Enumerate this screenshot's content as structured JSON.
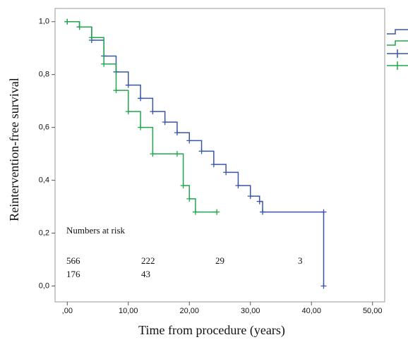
{
  "chart_data": {
    "type": "line",
    "step": "post",
    "x_label": "Time from procedure (years)",
    "y_label": "Reintervention-free survival",
    "xlim": [
      -2,
      52
    ],
    "ylim": [
      -0.06,
      1.05
    ],
    "xticks": [
      {
        "value": 0,
        "label": ",00"
      },
      {
        "value": 10,
        "label": "10,00"
      },
      {
        "value": 20,
        "label": "20,00"
      },
      {
        "value": 30,
        "label": "30,00"
      },
      {
        "value": 40,
        "label": "40,00"
      },
      {
        "value": 50,
        "label": "50,00"
      }
    ],
    "yticks": [
      {
        "value": 0,
        "label": "0,0"
      },
      {
        "value": 0.2,
        "label": "0,2"
      },
      {
        "value": 0.4,
        "label": "0,4"
      },
      {
        "value": 0.6,
        "label": "0,6"
      },
      {
        "value": 0.8,
        "label": "0,8"
      },
      {
        "value": 1.0,
        "label": "1,0"
      }
    ],
    "series": [
      {
        "color": "#3a55a8",
        "x": [
          0,
          2,
          4,
          6,
          8,
          10,
          12,
          14,
          16,
          18,
          20,
          22,
          24,
          26,
          28,
          30,
          31.5,
          32,
          42,
          42
        ],
        "values": [
          1.0,
          0.98,
          0.93,
          0.87,
          0.81,
          0.76,
          0.71,
          0.66,
          0.62,
          0.58,
          0.55,
          0.51,
          0.46,
          0.43,
          0.38,
          0.34,
          0.32,
          0.28,
          0.28,
          0.0
        ]
      },
      {
        "color": "#1fa84a",
        "x": [
          0,
          2,
          4,
          6,
          8,
          10,
          12,
          14,
          18,
          19,
          20,
          21,
          24.5
        ],
        "values": [
          1.0,
          0.98,
          0.94,
          0.84,
          0.74,
          0.66,
          0.6,
          0.5,
          0.5,
          0.38,
          0.33,
          0.28,
          0.28
        ]
      }
    ],
    "risk_table": {
      "title": "Numbers at risk",
      "rows": [
        [
          566,
          222,
          29,
          3
        ],
        [
          176,
          43
        ]
      ]
    }
  }
}
